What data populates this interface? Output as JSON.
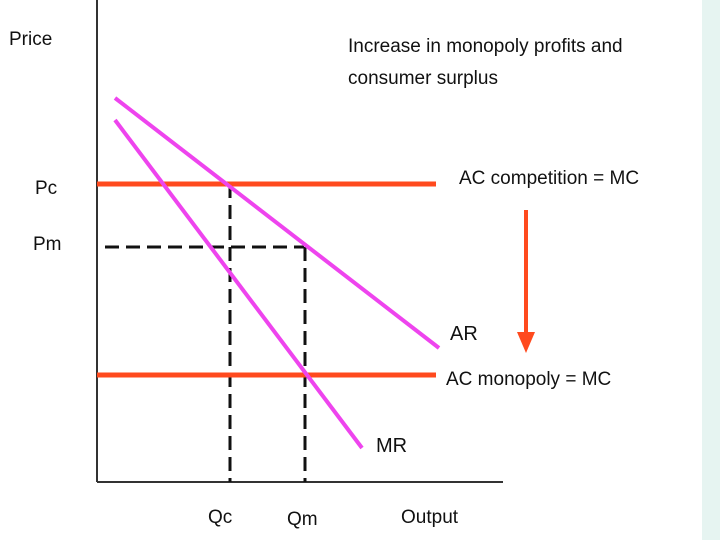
{
  "colors": {
    "cost_lines": "#ff4a1e",
    "demand_lines": "#ee44ee",
    "axes": "#333333",
    "guides": "#111111",
    "strip": "#e6f4f1"
  },
  "title_lines": [
    "Increase in monopoly profits and",
    "consumer surplus"
  ],
  "axes": {
    "y_label": "Price",
    "x_label": "Output"
  },
  "price_labels": {
    "pc": "Pc",
    "pm": "Pm"
  },
  "quantity_labels": {
    "qc": "Qc",
    "qm": "Qm"
  },
  "curves": {
    "ac_competition": "AC competition = MC",
    "ac_monopoly": "AC monopoly = MC",
    "ar": "AR",
    "mr": "MR"
  },
  "arrow_icon": "down-arrow-icon"
}
